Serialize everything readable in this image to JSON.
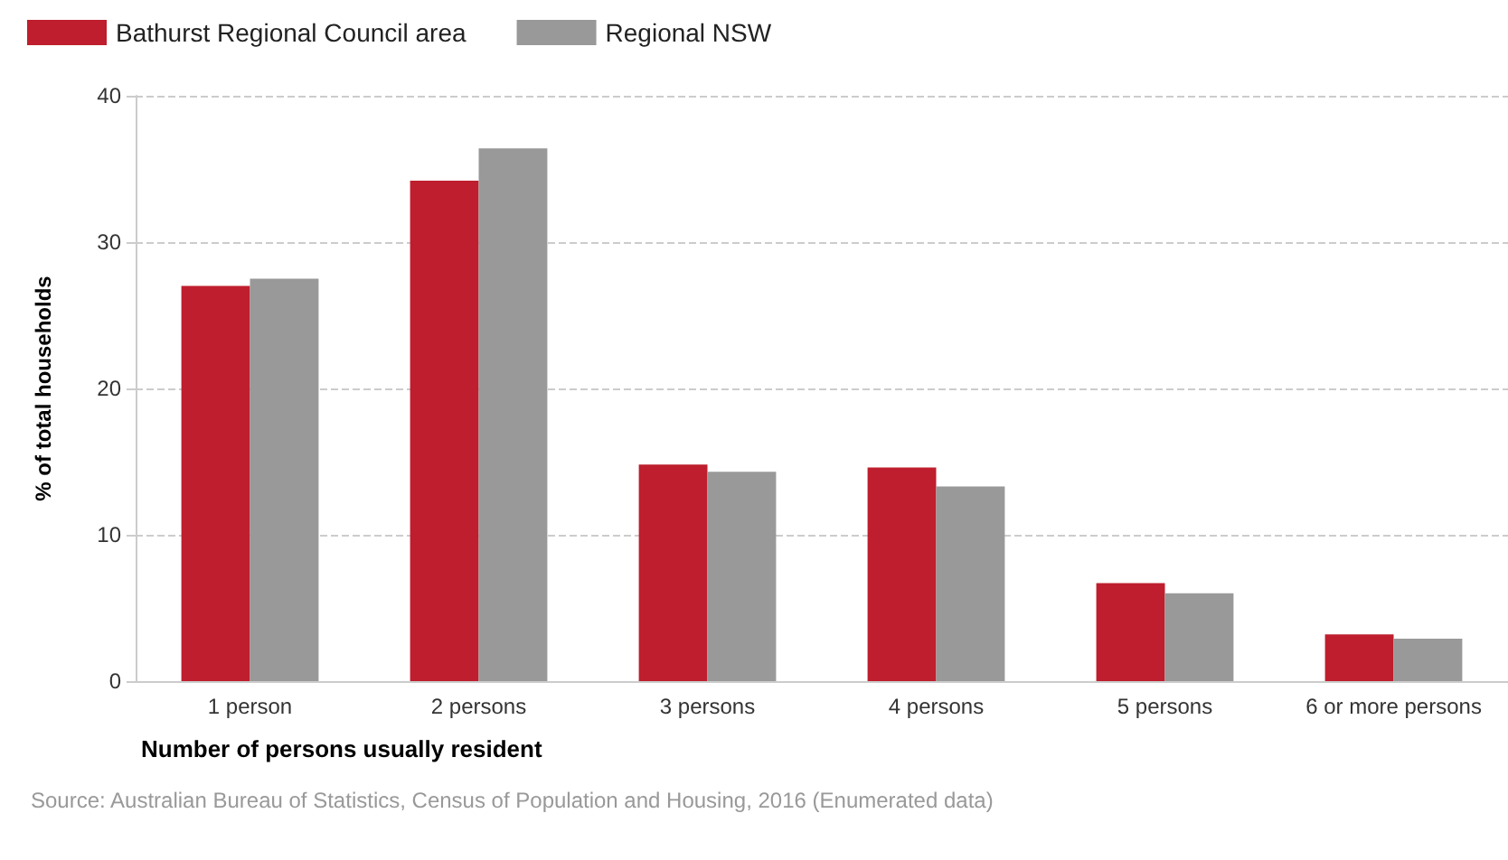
{
  "chart_data": {
    "type": "bar",
    "xlabel": "Number of persons usually resident",
    "ylabel": "% of total households",
    "categories": [
      "1 person",
      "2 persons",
      "3 persons",
      "4 persons",
      "5 persons",
      "6 or more persons"
    ],
    "series": [
      {
        "name": "Bathurst Regional Council area",
        "color": "#be1e2d",
        "values": [
          27.0,
          34.2,
          14.8,
          14.6,
          6.7,
          3.2
        ]
      },
      {
        "name": "Regional NSW",
        "color": "#999999",
        "values": [
          27.5,
          36.4,
          14.3,
          13.3,
          6.0,
          2.9
        ]
      }
    ],
    "ylim": [
      0,
      40
    ],
    "yticks": [
      0,
      10,
      20,
      30,
      40
    ],
    "grid": "y",
    "legend": "top left",
    "annotations": [
      "Source: Australian Bureau of Statistics, Census of Population and Housing, 2016 (Enumerated data)"
    ]
  }
}
